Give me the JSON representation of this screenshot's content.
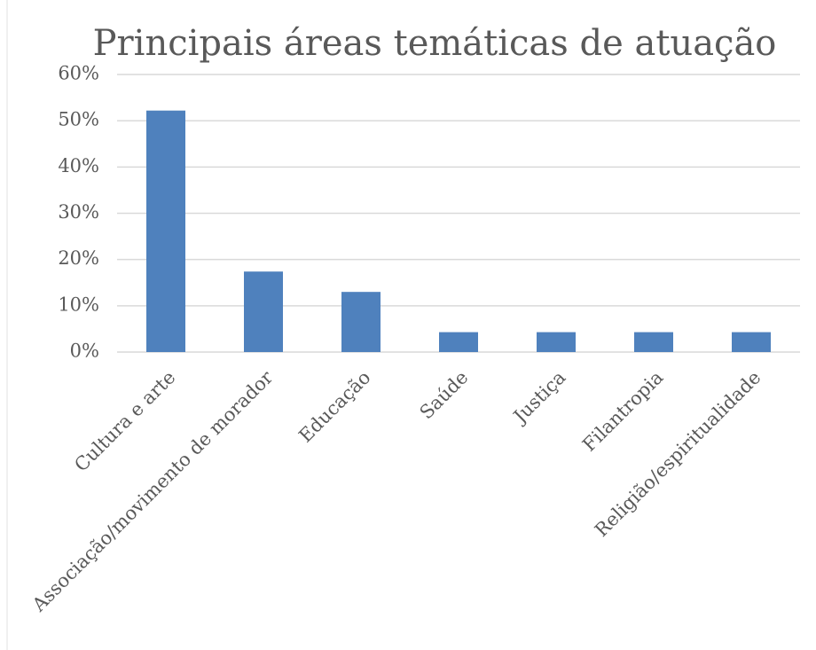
{
  "chart_data": {
    "type": "bar",
    "title": "Principais áreas temáticas de atuação",
    "categories": [
      "Cultura e arte",
      "Associação/movimento de morador",
      "Educação",
      "Saúde",
      "Justiça",
      "Filantropia",
      "Religião/espiritualidade"
    ],
    "values": [
      52.2,
      17.4,
      13,
      4.3,
      4.3,
      4.3,
      4.3
    ],
    "color": "#4f81bd",
    "ylim": [
      0,
      60
    ],
    "yticks": [
      {
        "value": 0,
        "label": "0%"
      },
      {
        "value": 10,
        "label": "10%"
      },
      {
        "value": 20,
        "label": "20%"
      },
      {
        "value": 30,
        "label": "30%"
      },
      {
        "value": 40,
        "label": "40%"
      },
      {
        "value": 50,
        "label": "50%"
      },
      {
        "value": 60,
        "label": "60%"
      }
    ],
    "grid": true
  }
}
